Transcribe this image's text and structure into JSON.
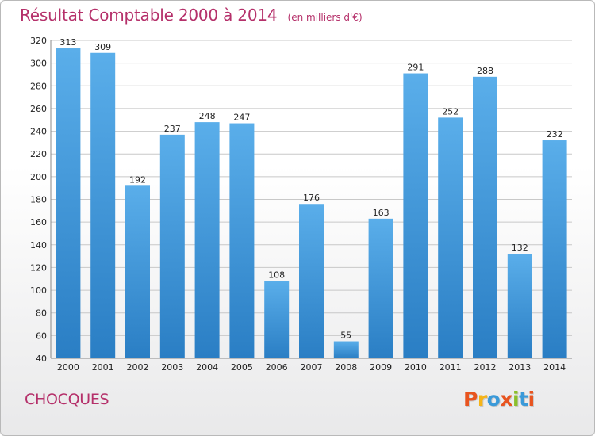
{
  "header": {
    "title": "Résultat Comptable 2000 à 2014",
    "subtitle": "(en milliers d'€)"
  },
  "commune": "CHOCQUES",
  "brand": {
    "letters": [
      "P",
      "r",
      "o",
      "x",
      "i",
      "t",
      "i"
    ],
    "colors": [
      "#e8541f",
      "#f6b418",
      "#3b9ad9",
      "#e8541f",
      "#8bbf2b",
      "#3b9ad9",
      "#e8541f"
    ]
  },
  "colors": {
    "bar_light": "#5aaeea",
    "bar_dark": "#2a7ec4",
    "grid": "#c8c8c8",
    "axis_text": "#222222"
  },
  "chart_data": {
    "type": "bar",
    "title": "Résultat Comptable 2000 à 2014",
    "subtitle": "(en milliers d'€)",
    "categories": [
      "2000",
      "2001",
      "2002",
      "2003",
      "2004",
      "2005",
      "2006",
      "2007",
      "2008",
      "2009",
      "2010",
      "2011",
      "2012",
      "2013",
      "2014"
    ],
    "values": [
      313,
      309,
      192,
      237,
      248,
      247,
      108,
      176,
      55,
      163,
      291,
      252,
      288,
      132,
      232
    ],
    "ylim": [
      40,
      320
    ],
    "yticks": [
      40,
      60,
      80,
      100,
      120,
      140,
      160,
      180,
      200,
      220,
      240,
      260,
      280,
      300,
      320
    ],
    "grid": true,
    "xlabel": "",
    "ylabel": ""
  }
}
